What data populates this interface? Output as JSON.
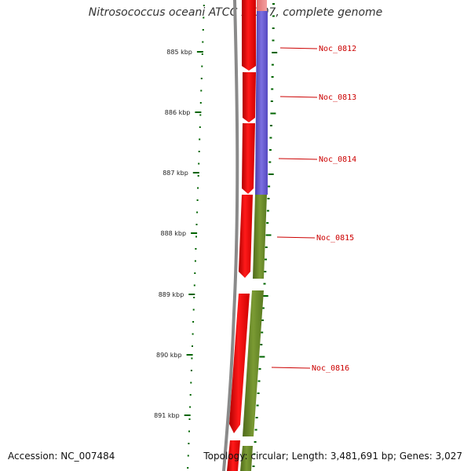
{
  "title": "Nitrosococcus oceani ATCC 19707, complete genome",
  "footer": {
    "accession": "Accession: NC_007484",
    "topology": "Topology: circular; Length: 3,481,691 bp; Genes: 3,027"
  },
  "colors": {
    "cds_forward": "#ff0000",
    "cds_blue": "#6a5acd",
    "cds_green": "#6b8e23",
    "backbone": "#888888",
    "ticks": "#006400",
    "label": "#cc0000"
  },
  "kbp_ticks": [
    {
      "kbp": 885,
      "label": "885 kbp"
    },
    {
      "kbp": 886,
      "label": "886 kbp"
    },
    {
      "kbp": 887,
      "label": "887 kbp"
    },
    {
      "kbp": 888,
      "label": "888 kbp"
    },
    {
      "kbp": 889,
      "label": "889 kbp"
    },
    {
      "kbp": 890,
      "label": "890 kbp"
    },
    {
      "kbp": 891,
      "label": "891 kbp"
    }
  ],
  "genes": [
    {
      "id": "Noc_0812",
      "color": "blue"
    },
    {
      "id": "Noc_0813",
      "color": "blue"
    },
    {
      "id": "Noc_0814",
      "color": "blue"
    },
    {
      "id": "Noc_0815",
      "color": "green"
    },
    {
      "id": "Noc_0816",
      "color": "green"
    }
  ]
}
